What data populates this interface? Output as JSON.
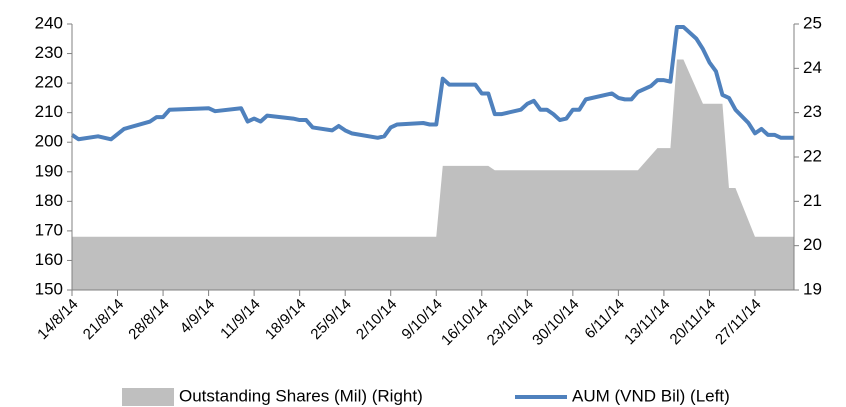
{
  "chart_data": {
    "type": "line",
    "legend": "bottom",
    "xlim": [
      0,
      111
    ],
    "xticks": [
      {
        "value": 0,
        "label": "14/8/14"
      },
      {
        "value": 7,
        "label": "21/8/14"
      },
      {
        "value": 14,
        "label": "28/8/14"
      },
      {
        "value": 21,
        "label": "4/9/14"
      },
      {
        "value": 28,
        "label": "11/9/14"
      },
      {
        "value": 35,
        "label": "18/9/14"
      },
      {
        "value": 42,
        "label": "25/9/14"
      },
      {
        "value": 49,
        "label": "2/10/14"
      },
      {
        "value": 56,
        "label": "9/10/14"
      },
      {
        "value": 63,
        "label": "16/10/14"
      },
      {
        "value": 70,
        "label": "23/10/14"
      },
      {
        "value": 77,
        "label": "30/10/14"
      },
      {
        "value": 84,
        "label": "6/11/14"
      },
      {
        "value": 91,
        "label": "13/11/14"
      },
      {
        "value": 98,
        "label": "20/11/14"
      },
      {
        "value": 105,
        "label": "27/11/14"
      }
    ],
    "ylim": [
      150,
      240
    ],
    "yticks": [
      150,
      160,
      170,
      180,
      190,
      200,
      210,
      220,
      230,
      240
    ],
    "y2lim": [
      19,
      25
    ],
    "y2ticks": [
      19,
      20,
      21,
      22,
      23,
      24,
      25
    ],
    "series": [
      {
        "name": "Outstanding Shares (Mil) (Right)",
        "type": "area",
        "axis": "y2",
        "color": "#bfbfbf",
        "x": [
          0,
          56,
          57,
          64,
          65,
          87,
          90,
          92,
          93,
          94,
          97,
          100,
          101,
          102,
          105,
          111
        ],
        "values": [
          20.2,
          20.2,
          21.8,
          21.8,
          21.7,
          21.7,
          22.2,
          22.2,
          24.2,
          24.2,
          23.2,
          23.2,
          21.3,
          21.3,
          20.2,
          20.2
        ]
      },
      {
        "name": "AUM (VND Bil) (Left)",
        "type": "line",
        "axis": "y",
        "color": "#4f81bd",
        "x": [
          0,
          1,
          4,
          6,
          8,
          12,
          13,
          14,
          15,
          21,
          22,
          26,
          27,
          28,
          29,
          30,
          34,
          35,
          36,
          37,
          40,
          41,
          42,
          43,
          47,
          48,
          49,
          50,
          54,
          55,
          56,
          57,
          58,
          62,
          63,
          64,
          65,
          66,
          69,
          70,
          71,
          72,
          73,
          74,
          75,
          76,
          77,
          78,
          79,
          83,
          84,
          85,
          86,
          87,
          89,
          90,
          91,
          92,
          93,
          94,
          96,
          97,
          98,
          99,
          100,
          101,
          102,
          104,
          105,
          106,
          107,
          108,
          109,
          110,
          111
        ],
        "values": [
          202.5,
          201,
          202,
          201,
          204.5,
          207,
          208.5,
          208.5,
          211,
          211.5,
          210.5,
          211.5,
          207,
          208,
          207,
          209,
          208,
          207.5,
          207.5,
          205,
          204,
          205.5,
          204,
          203,
          201.5,
          202,
          205,
          206,
          206.5,
          206,
          206,
          221.5,
          219.5,
          219.5,
          216.5,
          216.5,
          209.5,
          209.5,
          211,
          213,
          214,
          211,
          211,
          209.5,
          207.5,
          208,
          211,
          211,
          214.5,
          216.5,
          215,
          214.5,
          214.5,
          217,
          219,
          221,
          221,
          220.5,
          239,
          239,
          235,
          231.5,
          227,
          224,
          216,
          215,
          211,
          206.5,
          203,
          204.5,
          202.5,
          202.5,
          201.5,
          201.5,
          201.5
        ]
      }
    ]
  }
}
